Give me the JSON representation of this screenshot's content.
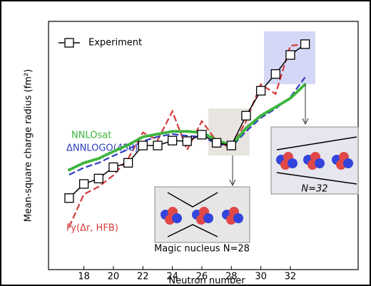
{
  "chart_data": {
    "type": "line",
    "x_label": "Neutron number",
    "y_label": "Mean-square charge radius (fm²)",
    "x": [
      17,
      18,
      19,
      20,
      21,
      22,
      23,
      24,
      25,
      26,
      27,
      28,
      29,
      30,
      31,
      32,
      33
    ],
    "xlim": [
      15.6,
      36.6
    ],
    "xticks": [
      18,
      20,
      22,
      24,
      26,
      28,
      30,
      32
    ],
    "ylim": [
      0,
      4.58
    ],
    "series": [
      {
        "name": "Experiment",
        "color": "#000000",
        "style": "solid",
        "marker": "square",
        "values": [
          1.32,
          1.58,
          1.68,
          1.89,
          1.97,
          2.29,
          2.29,
          2.38,
          2.37,
          2.49,
          2.34,
          2.29,
          2.84,
          3.3,
          3.61,
          3.96,
          4.16
        ]
      },
      {
        "name": "NNLOsat",
        "color": "#3cb43c",
        "style": "dotted",
        "values": [
          1.84,
          1.97,
          2.05,
          2.18,
          2.3,
          2.45,
          2.5,
          2.55,
          2.55,
          2.53,
          2.39,
          2.29,
          2.61,
          2.84,
          3.0,
          3.16,
          3.42
        ]
      },
      {
        "name": "ΔNNLOGO(450)",
        "color": "#2c3fbf",
        "style": "dashed",
        "values": [
          1.75,
          1.88,
          1.97,
          2.1,
          2.22,
          2.37,
          2.45,
          2.5,
          2.47,
          2.45,
          2.33,
          2.26,
          2.55,
          2.8,
          2.97,
          3.18,
          3.55
        ]
      },
      {
        "name": "Fy(Δr, HFB)",
        "color": "#d43a3a",
        "style": "dashed",
        "values": [
          0.79,
          1.39,
          1.53,
          1.74,
          2.05,
          2.53,
          2.39,
          2.92,
          2.21,
          2.74,
          2.37,
          2.24,
          2.74,
          3.42,
          3.24,
          4.13,
          4.16
        ]
      }
    ],
    "annotations": [
      "Magic nucleus N=28",
      "N=32"
    ]
  }
}
